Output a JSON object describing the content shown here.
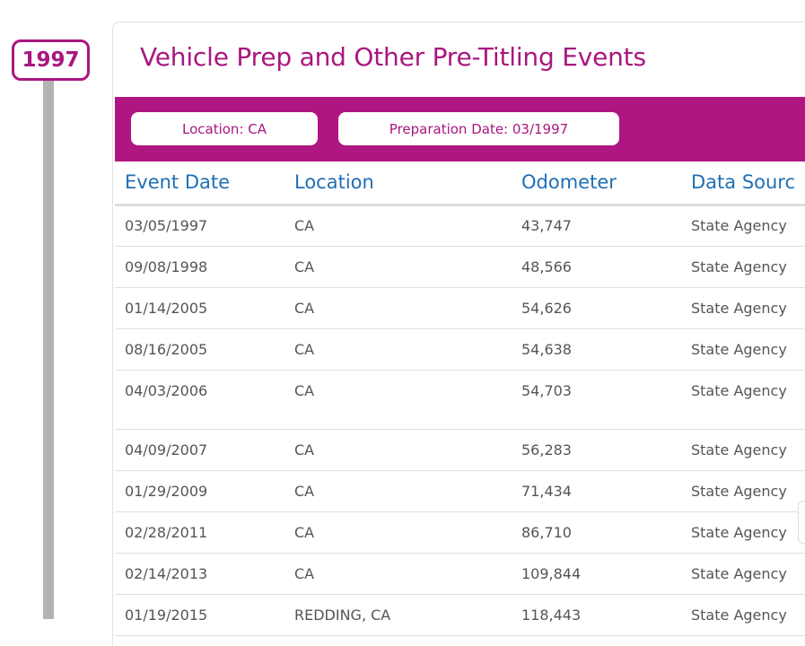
{
  "timeline": {
    "year": "1997"
  },
  "card": {
    "title": "Vehicle Prep and Other Pre-Titling Events",
    "filters": {
      "location": "Location: CA",
      "preparation_date": "Preparation Date: 03/1997"
    }
  },
  "table": {
    "headers": {
      "event_date": "Event Date",
      "location": "Location",
      "odometer": "Odometer",
      "data_source": "Data Sourc"
    },
    "rows": [
      {
        "event_date": "03/05/1997",
        "location": "CA",
        "odometer": "43,747",
        "data_source": "State Agency"
      },
      {
        "event_date": "09/08/1998",
        "location": "CA",
        "odometer": "48,566",
        "data_source": "State Agency"
      },
      {
        "event_date": "01/14/2005",
        "location": "CA",
        "odometer": "54,626",
        "data_source": "State Agency"
      },
      {
        "event_date": "08/16/2005",
        "location": "CA",
        "odometer": "54,638",
        "data_source": "State Agency"
      },
      {
        "event_date": "04/03/2006",
        "location": "CA",
        "odometer": "54,703",
        "data_source": "State Agency"
      },
      {
        "event_date": "04/09/2007",
        "location": "CA",
        "odometer": "56,283",
        "data_source": "State Agency"
      },
      {
        "event_date": "01/29/2009",
        "location": "CA",
        "odometer": "71,434",
        "data_source": "State Agency"
      },
      {
        "event_date": "02/28/2011",
        "location": "CA",
        "odometer": "86,710",
        "data_source": "State Agency"
      },
      {
        "event_date": "02/14/2013",
        "location": "CA",
        "odometer": "109,844",
        "data_source": "State Agency"
      },
      {
        "event_date": "01/19/2015",
        "location": "REDDING, CA",
        "odometer": "118,443",
        "data_source": "State Agency"
      }
    ]
  },
  "colors": {
    "brand": "#a8177f",
    "band": "#b01682",
    "header_text": "#1f6fb5",
    "timeline": "#b3b3b3"
  }
}
